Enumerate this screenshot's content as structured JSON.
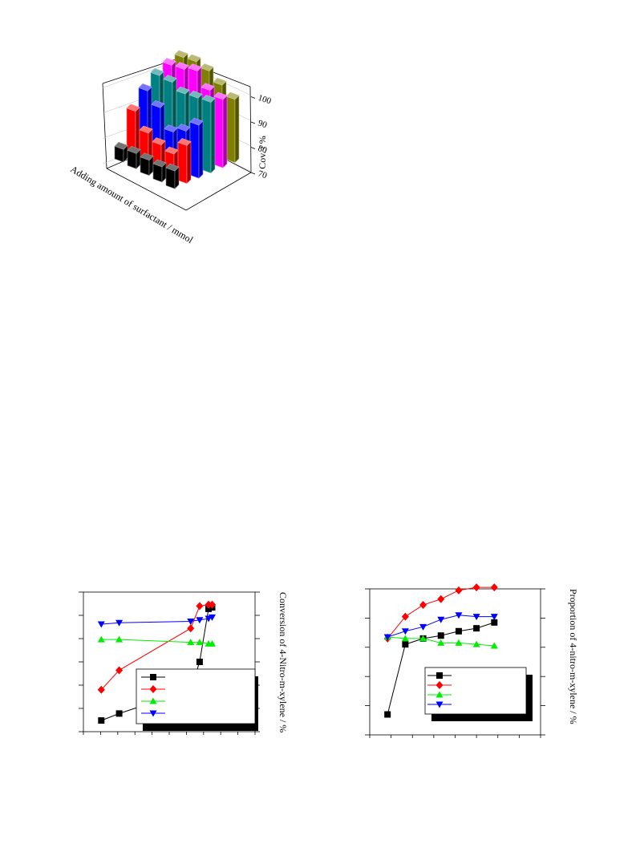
{
  "chart_data": [
    {
      "type": "bar",
      "title": "",
      "xlabel": "Adding amount of surfactant / mmol",
      "ylabel": "",
      "zlabel": "Cov. / %",
      "zticks": [
        "70",
        "80",
        "90",
        "100"
      ],
      "zlim": [
        70,
        104
      ],
      "rows": [
        {
          "color": "#000000",
          "values": [
            75,
            76,
            76,
            76,
            77
          ]
        },
        {
          "color": "#ff0000",
          "values": [
            88,
            82,
            80,
            79,
            85
          ]
        },
        {
          "color": "#0000ff",
          "values": [
            94,
            90,
            83,
            86,
            91
          ]
        },
        {
          "color": "#008080",
          "values": [
            98,
            98,
            96,
            97,
            98
          ]
        },
        {
          "color": "#ff00ff",
          "values": [
            100,
            101,
            103,
            98,
            97
          ]
        },
        {
          "color": "#808000",
          "values": [
            101,
            102,
            101,
            98,
            95
          ]
        }
      ]
    },
    {
      "type": "line",
      "title": "",
      "xlabel": "",
      "ylabel": "",
      "y2label": "Conversion of 4-Nitro-m-xylene / %",
      "x": [
        1,
        2,
        3,
        4,
        5,
        6,
        7,
        8,
        9
      ],
      "xlim": [
        0,
        9.6
      ],
      "ylim": [
        0,
        100
      ],
      "legend_loc": "lower-right",
      "series": [
        {
          "color": "#000000",
          "marker": "square",
          "x": [
            1,
            2,
            6,
            6.5,
            7,
            7.2
          ],
          "values": [
            8,
            13,
            30,
            50,
            88,
            89
          ]
        },
        {
          "color": "#ff0000",
          "marker": "diamond",
          "x": [
            1,
            2,
            6,
            6.5,
            7,
            7.2
          ],
          "values": [
            30,
            44,
            74,
            90,
            91,
            91
          ]
        },
        {
          "color": "#00ee00",
          "marker": "triangle-up",
          "x": [
            1,
            2,
            6,
            6.5,
            7,
            7.2
          ],
          "values": [
            66,
            66,
            64,
            64,
            63,
            63
          ]
        },
        {
          "color": "#0000ff",
          "marker": "triangle-down",
          "x": [
            1,
            2,
            6,
            6.5,
            7,
            7.2
          ],
          "values": [
            77,
            78,
            79,
            80,
            81,
            82
          ]
        }
      ]
    },
    {
      "type": "line",
      "title": "",
      "xlabel": "",
      "ylabel": "",
      "y2label": "Proportion of 4-nitro-m-xylene / %",
      "x": [
        1,
        2,
        3,
        4,
        5,
        6,
        7,
        8,
        9
      ],
      "xlim": [
        0,
        9.6
      ],
      "ylim": [
        0,
        100
      ],
      "legend_loc": "lower-right",
      "series": [
        {
          "color": "#000000",
          "marker": "square",
          "x": [
            1,
            2,
            3,
            4,
            5,
            6,
            7
          ],
          "values": [
            14,
            62,
            66,
            68,
            71,
            73,
            77
          ]
        },
        {
          "color": "#ff0000",
          "marker": "diamond",
          "x": [
            1,
            2,
            3,
            4,
            5,
            6,
            7
          ],
          "values": [
            66,
            81,
            89,
            93,
            99,
            101,
            101
          ]
        },
        {
          "color": "#00ee00",
          "marker": "triangle-up",
          "x": [
            1,
            2,
            3,
            4,
            5,
            6,
            7
          ],
          "values": [
            67,
            66,
            66,
            63,
            63,
            62,
            61
          ]
        },
        {
          "color": "#0000ff",
          "marker": "triangle-down",
          "x": [
            1,
            2,
            3,
            4,
            5,
            6,
            7
          ],
          "values": [
            67,
            71,
            74,
            79,
            82,
            81,
            81
          ]
        }
      ]
    }
  ]
}
